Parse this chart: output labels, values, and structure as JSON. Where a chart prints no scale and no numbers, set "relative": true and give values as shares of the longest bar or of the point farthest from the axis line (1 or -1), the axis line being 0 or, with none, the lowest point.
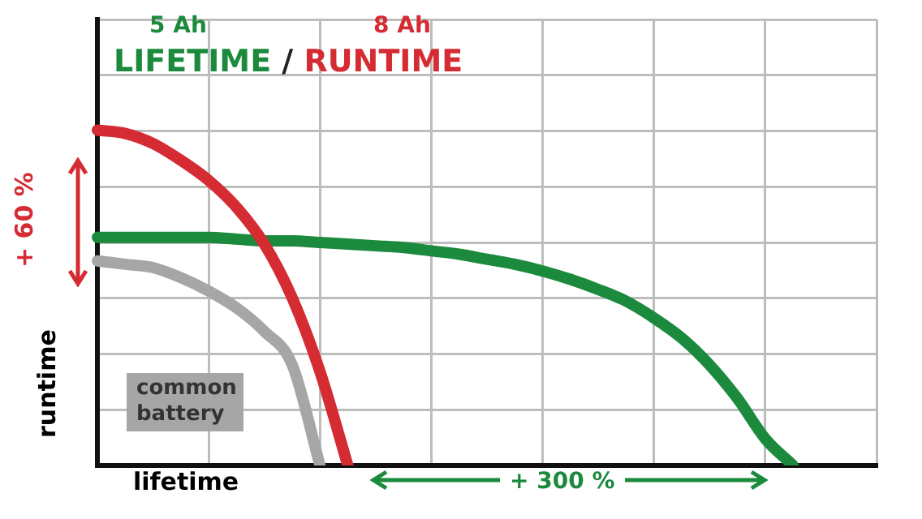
{
  "chart_data": {
    "type": "line",
    "relative": true,
    "title": "LIFETIME / RUNTIME",
    "xlabel": "lifetime",
    "ylabel": "runtime",
    "annotations": [
      "5 Ah",
      "8 Ah",
      "+ 60 %",
      "+ 300 %",
      "common battery"
    ],
    "categories": [
      null,
      null,
      null,
      null,
      null,
      null,
      null,
      null,
      null,
      null,
      null,
      null,
      null,
      null,
      null,
      null,
      null,
      null,
      null,
      null,
      null,
      null,
      null,
      null,
      null,
      null,
      null,
      null,
      null
    ],
    "series": [
      {
        "color": "#a6a6a6",
        "values": [
          0.61,
          0.6,
          0.59,
          0.56,
          0.52,
          0.47,
          0.4,
          0.3,
          0,
          null,
          null,
          null,
          null,
          null,
          null,
          null,
          null,
          null,
          null,
          null,
          null,
          null,
          null,
          null,
          null,
          null,
          null,
          null,
          null
        ]
      },
      {
        "color": "#d52b33",
        "values": [
          1,
          0.99,
          0.96,
          0.91,
          0.85,
          0.77,
          0.66,
          0.5,
          0.28,
          0,
          null,
          null,
          null,
          null,
          null,
          null,
          null,
          null,
          null,
          null,
          null,
          null,
          null,
          null,
          null,
          null,
          null,
          null,
          null
        ]
      },
      {
        "color": "#1b8a3c",
        "values": [
          0.68,
          0.68,
          0.68,
          0.68,
          0.68,
          0.675,
          0.67,
          0.67,
          0.665,
          0.66,
          0.655,
          0.65,
          0.64,
          0.63,
          0.615,
          0.6,
          0.58,
          0.555,
          0.525,
          0.49,
          0.44,
          0.38,
          0.3,
          0.2,
          0.08,
          0,
          null,
          null,
          null
        ]
      }
    ],
    "grid": true,
    "legend": false,
    "marker": "none",
    "line_style": "solid"
  }
}
